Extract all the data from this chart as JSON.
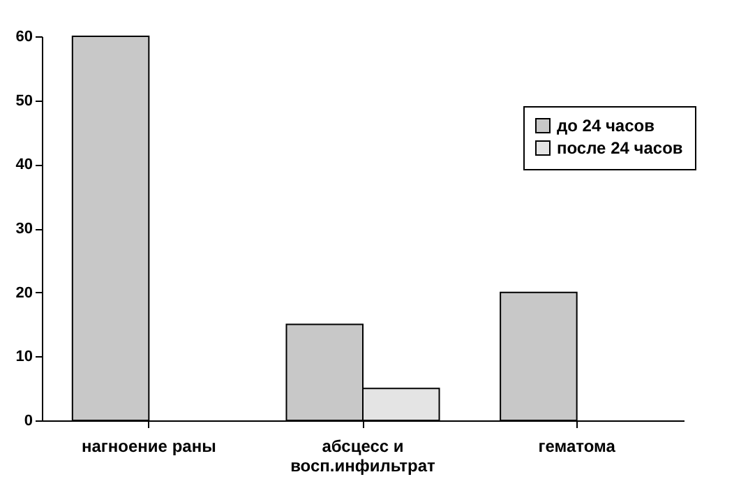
{
  "chart_data": {
    "type": "bar",
    "categories": [
      "нагноение раны",
      "абсцесс и восп.инфильтрат",
      "гематома"
    ],
    "series": [
      {
        "name": "до 24 часов",
        "color": "#c8c8c8",
        "values": [
          60,
          15,
          20
        ]
      },
      {
        "name": "после 24 часов",
        "color": "#e4e4e4",
        "values": [
          null,
          5,
          null
        ]
      }
    ],
    "ylim": [
      0,
      60
    ],
    "yticks": [
      0,
      10,
      20,
      30,
      40,
      50,
      60
    ],
    "legend": "top right",
    "grid": false
  }
}
